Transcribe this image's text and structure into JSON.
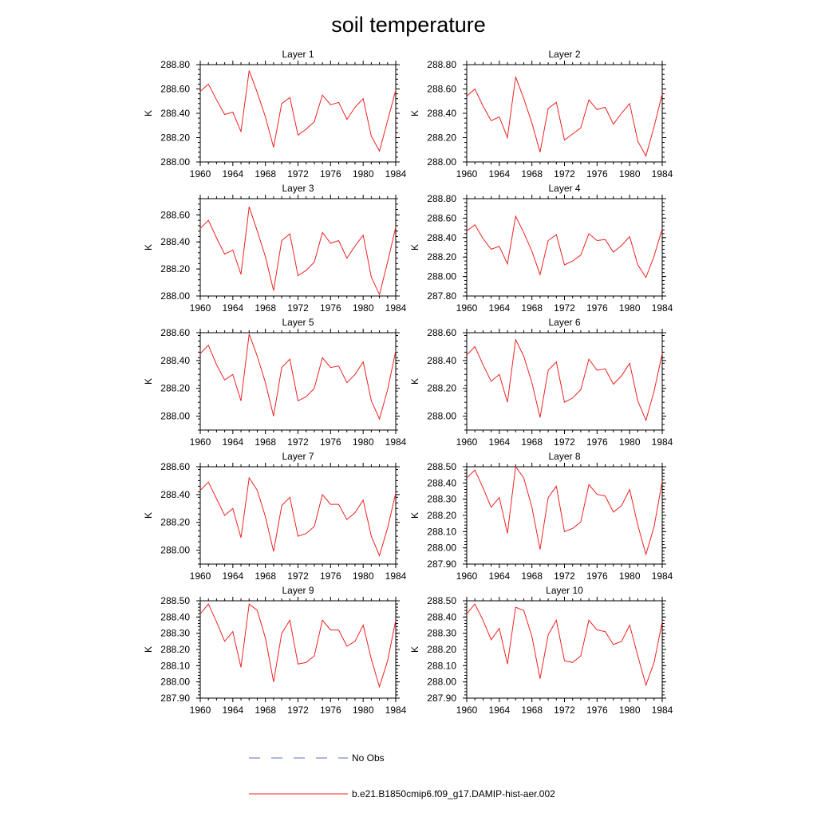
{
  "figure": {
    "title": "soil temperature",
    "legend": [
      {
        "label": "No Obs",
        "color": "#5a6fb5",
        "style": "dashed"
      },
      {
        "label": "b.e21.B1850cmip6.f09_g17.DAMIP-hist-aer.002",
        "color": "#ee2222",
        "style": "solid"
      }
    ]
  },
  "chart_data": [
    {
      "type": "line",
      "title": "Layer 1",
      "ylabel": "K",
      "xlim": [
        1960,
        1984
      ],
      "ylim": [
        288.0,
        288.8
      ],
      "xticks": [
        "1960",
        "1964",
        "1968",
        "1972",
        "1976",
        "1980",
        "1984"
      ],
      "yticks": [
        "288.00",
        "288.20",
        "288.40",
        "288.60",
        "288.80"
      ],
      "color": "#ee2222",
      "x": [
        1960,
        1961,
        1962,
        1963,
        1964,
        1965,
        1966,
        1967,
        1968,
        1969,
        1970,
        1971,
        1972,
        1973,
        1974,
        1975,
        1976,
        1977,
        1978,
        1979,
        1980,
        1981,
        1982,
        1983,
        1984
      ],
      "series": [
        {
          "values": [
            288.58,
            288.64,
            288.51,
            288.39,
            288.41,
            288.25,
            288.75,
            288.57,
            288.37,
            288.12,
            288.48,
            288.53,
            288.22,
            288.27,
            288.33,
            288.55,
            288.47,
            288.49,
            288.35,
            288.45,
            288.52,
            288.21,
            288.09,
            288.34,
            288.59
          ]
        }
      ]
    },
    {
      "type": "line",
      "title": "Layer 2",
      "ylabel": "K",
      "xlim": [
        1960,
        1984
      ],
      "ylim": [
        288.0,
        288.8
      ],
      "xticks": [
        "1960",
        "1964",
        "1968",
        "1972",
        "1976",
        "1980",
        "1984"
      ],
      "yticks": [
        "288.00",
        "288.20",
        "288.40",
        "288.60",
        "288.80"
      ],
      "color": "#ee2222",
      "x": [
        1960,
        1961,
        1962,
        1963,
        1964,
        1965,
        1966,
        1967,
        1968,
        1969,
        1970,
        1971,
        1972,
        1973,
        1974,
        1975,
        1976,
        1977,
        1978,
        1979,
        1980,
        1981,
        1982,
        1983,
        1984
      ],
      "series": [
        {
          "values": [
            288.54,
            288.6,
            288.46,
            288.34,
            288.37,
            288.2,
            288.7,
            288.52,
            288.32,
            288.08,
            288.44,
            288.49,
            288.18,
            288.23,
            288.28,
            288.51,
            288.43,
            288.45,
            288.31,
            288.4,
            288.48,
            288.17,
            288.05,
            288.29,
            288.56
          ]
        }
      ]
    },
    {
      "type": "line",
      "title": "Layer 3",
      "ylabel": "K",
      "xlim": [
        1960,
        1984
      ],
      "ylim": [
        288.0,
        288.72
      ],
      "xticks": [
        "1960",
        "1964",
        "1968",
        "1972",
        "1976",
        "1980",
        "1984"
      ],
      "yticks": [
        "288.00",
        "288.20",
        "288.40",
        "288.60"
      ],
      "color": "#ee2222",
      "x": [
        1960,
        1961,
        1962,
        1963,
        1964,
        1965,
        1966,
        1967,
        1968,
        1969,
        1970,
        1971,
        1972,
        1973,
        1974,
        1975,
        1976,
        1977,
        1978,
        1979,
        1980,
        1981,
        1982,
        1983,
        1984
      ],
      "series": [
        {
          "values": [
            288.5,
            288.56,
            288.43,
            288.31,
            288.34,
            288.16,
            288.66,
            288.48,
            288.29,
            288.04,
            288.41,
            288.46,
            288.15,
            288.19,
            288.25,
            288.47,
            288.39,
            288.41,
            288.28,
            288.37,
            288.45,
            288.14,
            288.01,
            288.25,
            288.51
          ]
        }
      ]
    },
    {
      "type": "line",
      "title": "Layer 4",
      "ylabel": "K",
      "xlim": [
        1960,
        1984
      ],
      "ylim": [
        287.8,
        288.8
      ],
      "xticks": [
        "1960",
        "1964",
        "1968",
        "1972",
        "1976",
        "1980",
        "1984"
      ],
      "yticks": [
        "287.80",
        "288.00",
        "288.20",
        "288.40",
        "288.60",
        "288.80"
      ],
      "color": "#ee2222",
      "x": [
        1960,
        1961,
        1962,
        1963,
        1964,
        1965,
        1966,
        1967,
        1968,
        1969,
        1970,
        1971,
        1972,
        1973,
        1974,
        1975,
        1976,
        1977,
        1978,
        1979,
        1980,
        1981,
        1982,
        1983,
        1984
      ],
      "series": [
        {
          "values": [
            288.47,
            288.53,
            288.39,
            288.28,
            288.31,
            288.13,
            288.62,
            288.45,
            288.26,
            288.02,
            288.37,
            288.43,
            288.12,
            288.16,
            288.22,
            288.44,
            288.37,
            288.38,
            288.25,
            288.32,
            288.41,
            288.12,
            287.99,
            288.21,
            288.49
          ]
        }
      ]
    },
    {
      "type": "line",
      "title": "Layer 5",
      "ylabel": "K",
      "xlim": [
        1960,
        1984
      ],
      "ylim": [
        287.9,
        288.6
      ],
      "xticks": [
        "1960",
        "1964",
        "1968",
        "1972",
        "1976",
        "1980",
        "1984"
      ],
      "yticks": [
        "288.00",
        "288.20",
        "288.40",
        "288.60"
      ],
      "color": "#ee2222",
      "x": [
        1960,
        1961,
        1962,
        1963,
        1964,
        1965,
        1966,
        1967,
        1968,
        1969,
        1970,
        1971,
        1972,
        1973,
        1974,
        1975,
        1976,
        1977,
        1978,
        1979,
        1980,
        1981,
        1982,
        1983,
        1984
      ],
      "series": [
        {
          "values": [
            288.45,
            288.51,
            288.37,
            288.26,
            288.3,
            288.11,
            288.59,
            288.43,
            288.24,
            288.0,
            288.35,
            288.41,
            288.11,
            288.14,
            288.2,
            288.42,
            288.35,
            288.36,
            288.24,
            288.3,
            288.39,
            288.11,
            287.98,
            288.19,
            288.47
          ]
        }
      ]
    },
    {
      "type": "line",
      "title": "Layer 6",
      "ylabel": "K",
      "xlim": [
        1960,
        1984
      ],
      "ylim": [
        287.9,
        288.6
      ],
      "xticks": [
        "1960",
        "1964",
        "1968",
        "1972",
        "1976",
        "1980",
        "1984"
      ],
      "yticks": [
        "288.00",
        "288.20",
        "288.40",
        "288.60"
      ],
      "color": "#ee2222",
      "x": [
        1960,
        1961,
        1962,
        1963,
        1964,
        1965,
        1966,
        1967,
        1968,
        1969,
        1970,
        1971,
        1972,
        1973,
        1974,
        1975,
        1976,
        1977,
        1978,
        1979,
        1980,
        1981,
        1982,
        1983,
        1984
      ],
      "series": [
        {
          "values": [
            288.44,
            288.5,
            288.37,
            288.25,
            288.3,
            288.1,
            288.55,
            288.43,
            288.24,
            287.99,
            288.33,
            288.39,
            288.1,
            288.13,
            288.19,
            288.41,
            288.33,
            288.34,
            288.23,
            288.29,
            288.38,
            288.11,
            287.97,
            288.18,
            288.45
          ]
        }
      ]
    },
    {
      "type": "line",
      "title": "Layer 7",
      "ylabel": "K",
      "xlim": [
        1960,
        1984
      ],
      "ylim": [
        287.9,
        288.6
      ],
      "xticks": [
        "1960",
        "1964",
        "1968",
        "1972",
        "1976",
        "1980",
        "1984"
      ],
      "yticks": [
        "288.00",
        "288.20",
        "288.40",
        "288.60"
      ],
      "color": "#ee2222",
      "x": [
        1960,
        1961,
        1962,
        1963,
        1964,
        1965,
        1966,
        1967,
        1968,
        1969,
        1970,
        1971,
        1972,
        1973,
        1974,
        1975,
        1976,
        1977,
        1978,
        1979,
        1980,
        1981,
        1982,
        1983,
        1984
      ],
      "series": [
        {
          "values": [
            288.43,
            288.49,
            288.37,
            288.25,
            288.3,
            288.09,
            288.52,
            288.43,
            288.24,
            287.99,
            288.32,
            288.38,
            288.1,
            288.12,
            288.17,
            288.4,
            288.33,
            288.33,
            288.22,
            288.27,
            288.36,
            288.1,
            287.96,
            288.16,
            288.41
          ]
        }
      ]
    },
    {
      "type": "line",
      "title": "Layer 8",
      "ylabel": "K",
      "xlim": [
        1960,
        1984
      ],
      "ylim": [
        287.9,
        288.5
      ],
      "xticks": [
        "1960",
        "1964",
        "1968",
        "1972",
        "1976",
        "1980",
        "1984"
      ],
      "yticks": [
        "287.90",
        "288.00",
        "288.10",
        "288.20",
        "288.30",
        "288.40",
        "288.50"
      ],
      "color": "#ee2222",
      "x": [
        1960,
        1961,
        1962,
        1963,
        1964,
        1965,
        1966,
        1967,
        1968,
        1969,
        1970,
        1971,
        1972,
        1973,
        1974,
        1975,
        1976,
        1977,
        1978,
        1979,
        1980,
        1981,
        1982,
        1983,
        1984
      ],
      "series": [
        {
          "values": [
            288.43,
            288.48,
            288.37,
            288.25,
            288.31,
            288.09,
            288.5,
            288.43,
            288.25,
            287.99,
            288.31,
            288.38,
            288.1,
            288.12,
            288.16,
            288.39,
            288.33,
            288.32,
            288.22,
            288.26,
            288.36,
            288.14,
            287.96,
            288.13,
            288.41
          ]
        }
      ]
    },
    {
      "type": "line",
      "title": "Layer 9",
      "ylabel": "K",
      "xlim": [
        1960,
        1984
      ],
      "ylim": [
        287.9,
        288.5
      ],
      "xticks": [
        "1960",
        "1964",
        "1968",
        "1972",
        "1976",
        "1980",
        "1984"
      ],
      "yticks": [
        "287.90",
        "288.00",
        "288.10",
        "288.20",
        "288.30",
        "288.40",
        "288.50"
      ],
      "color": "#ee2222",
      "x": [
        1960,
        1961,
        1962,
        1963,
        1964,
        1965,
        1966,
        1967,
        1968,
        1969,
        1970,
        1971,
        1972,
        1973,
        1974,
        1975,
        1976,
        1977,
        1978,
        1979,
        1980,
        1981,
        1982,
        1983,
        1984
      ],
      "series": [
        {
          "values": [
            288.42,
            288.48,
            288.37,
            288.25,
            288.31,
            288.09,
            288.48,
            288.44,
            288.27,
            288.0,
            288.3,
            288.38,
            288.11,
            288.12,
            288.16,
            288.38,
            288.32,
            288.32,
            288.22,
            288.25,
            288.35,
            288.14,
            287.97,
            288.13,
            288.38
          ]
        }
      ]
    },
    {
      "type": "line",
      "title": "Layer 10",
      "ylabel": "K",
      "xlim": [
        1960,
        1984
      ],
      "ylim": [
        287.9,
        288.5
      ],
      "xticks": [
        "1960",
        "1964",
        "1968",
        "1972",
        "1976",
        "1980",
        "1984"
      ],
      "yticks": [
        "287.90",
        "288.00",
        "288.10",
        "288.20",
        "288.30",
        "288.40",
        "288.50"
      ],
      "color": "#ee2222",
      "x": [
        1960,
        1961,
        1962,
        1963,
        1964,
        1965,
        1966,
        1967,
        1968,
        1969,
        1970,
        1971,
        1972,
        1973,
        1974,
        1975,
        1976,
        1977,
        1978,
        1979,
        1980,
        1981,
        1982,
        1983,
        1984
      ],
      "series": [
        {
          "values": [
            288.42,
            288.48,
            288.38,
            288.26,
            288.33,
            288.11,
            288.46,
            288.44,
            288.28,
            288.02,
            288.29,
            288.38,
            288.13,
            288.12,
            288.16,
            288.38,
            288.32,
            288.31,
            288.23,
            288.25,
            288.35,
            288.16,
            287.98,
            288.12,
            288.37
          ]
        }
      ]
    }
  ]
}
